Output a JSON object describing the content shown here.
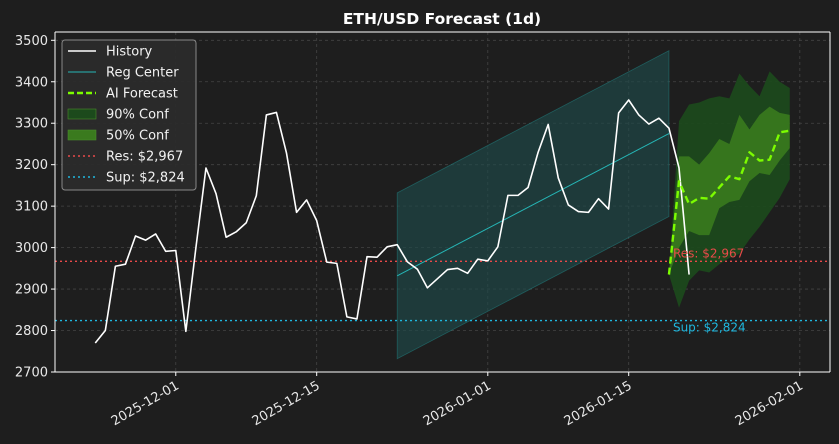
{
  "chart_data": {
    "type": "line",
    "title": "ETH/USD Forecast (1d)",
    "xlabel": "",
    "ylabel": "",
    "xlim": [
      "2025-11-19",
      "2026-02-04"
    ],
    "ylim": [
      2700,
      3520
    ],
    "x_ticks": [
      "2025-12-01",
      "2025-12-15",
      "2026-01-01",
      "2026-01-15",
      "2026-02-01"
    ],
    "y_ticks": [
      2700,
      2800,
      2900,
      3000,
      3100,
      3200,
      3300,
      3400,
      3500
    ],
    "grid": true,
    "legend_position": "top-left",
    "colors": {
      "background": "#1e1e1e",
      "history": "#ffffff",
      "reg_center": "#26b5b5",
      "reg_band": "#1f4a4a",
      "ai_forecast": "#7cfc00",
      "conf90": "#1c4a1c",
      "conf50": "#3a7a1e",
      "resistance": "#e84a4a",
      "support": "#1fb8e0",
      "axis": "#ffffff",
      "grid": "#444444"
    },
    "legend": [
      {
        "key": "history",
        "label": "History"
      },
      {
        "key": "reg_center",
        "label": "Reg Center"
      },
      {
        "key": "ai_forecast",
        "label": "AI Forecast"
      },
      {
        "key": "conf90",
        "label": "90% Conf"
      },
      {
        "key": "conf50",
        "label": "50% Conf"
      },
      {
        "key": "resistance",
        "label": "Res: $2,967"
      },
      {
        "key": "support",
        "label": "Sup: $2,824"
      }
    ],
    "resistance": {
      "value": 2967,
      "label": "Res: $2,967"
    },
    "support": {
      "value": 2824,
      "label": "Sup: $2,824"
    },
    "history": {
      "start": "2025-11-23",
      "values": [
        2770,
        2800,
        2955,
        2960,
        3028,
        3018,
        3033,
        2991,
        2993,
        2798,
        3000,
        3192,
        3130,
        3025,
        3038,
        3060,
        3125,
        3320,
        3326,
        3228,
        3085,
        3115,
        3065,
        2965,
        2962,
        2833,
        2828,
        2978,
        2977,
        3002,
        3007,
        2966,
        2948,
        2903,
        2925,
        2947,
        2950,
        2938,
        2972,
        2968,
        3002,
        3126,
        3126,
        3145,
        3230,
        3297,
        3168,
        3103,
        3087,
        3085,
        3118,
        3093,
        3325,
        3356,
        3320,
        3298,
        3312,
        3288,
        3192,
        2935
      ]
    },
    "regression": {
      "start": "2025-12-23",
      "end": "2026-01-19",
      "center": [
        2932,
        3275
      ],
      "upper": [
        3132,
        3475
      ],
      "lower": [
        2732,
        3075
      ]
    },
    "forecast": {
      "start": "2026-01-19",
      "values": [
        2935,
        3160,
        3105,
        3120,
        3118,
        3145,
        3172,
        3165,
        3230,
        3210,
        3212,
        3278,
        3282
      ],
      "conf90_upper": [
        2935,
        3305,
        3345,
        3350,
        3360,
        3365,
        3360,
        3420,
        3390,
        3365,
        3425,
        3400,
        3385
      ],
      "conf90_lower": [
        2935,
        2855,
        2920,
        2945,
        2940,
        2960,
        2975,
        2985,
        3020,
        3050,
        3085,
        3120,
        3165
      ],
      "conf50_upper": [
        2935,
        3220,
        3220,
        3200,
        3228,
        3262,
        3250,
        3320,
        3285,
        3320,
        3340,
        3325,
        3320
      ],
      "conf50_lower": [
        2935,
        3000,
        3040,
        3030,
        3030,
        3095,
        3110,
        3115,
        3160,
        3180,
        3175,
        3210,
        3240
      ]
    }
  }
}
